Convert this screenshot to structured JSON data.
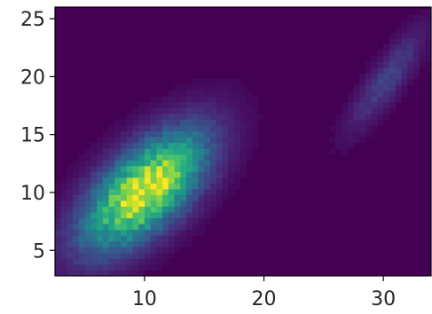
{
  "chart_data": {
    "type": "heatmap",
    "title": "",
    "xlabel": "",
    "ylabel": "",
    "xlim": [
      2.5,
      34
    ],
    "ylim": [
      2.8,
      26
    ],
    "x_ticks": [
      10,
      20,
      30
    ],
    "x_tick_labels": [
      "10",
      "20",
      "30"
    ],
    "y_ticks": [
      5,
      10,
      15,
      20,
      25
    ],
    "y_tick_labels": [
      "5",
      "10",
      "15",
      "20",
      "25"
    ],
    "colormap": "viridis",
    "background_color": "#440154",
    "grid": false,
    "bin_size": 0.5,
    "clusters": [
      {
        "center": [
          10,
          10.2
        ],
        "sigma_major": 4.4,
        "sigma_minor": 2.1,
        "angle_deg": 45,
        "peak_level": 1.0
      },
      {
        "center": [
          30.3,
          19.8
        ],
        "sigma_major": 3.6,
        "sigma_minor": 0.95,
        "angle_deg": 55,
        "peak_level": 0.2
      }
    ]
  }
}
